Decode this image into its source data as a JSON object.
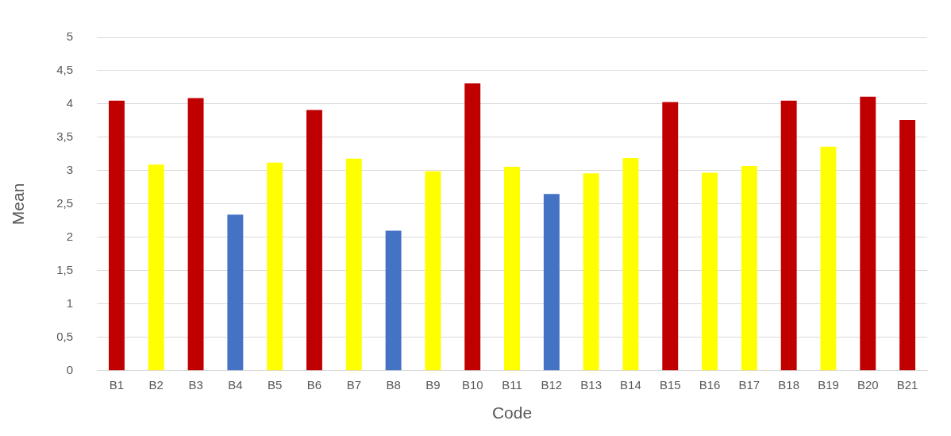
{
  "chart_data": {
    "type": "bar",
    "xlabel": "Code",
    "ylabel": "Mean",
    "categories": [
      "B1",
      "B2",
      "B3",
      "B4",
      "B5",
      "B6",
      "B7",
      "B8",
      "B9",
      "B10",
      "B11",
      "B12",
      "B13",
      "B14",
      "B15",
      "B16",
      "B17",
      "B18",
      "B19",
      "B20",
      "B21"
    ],
    "values": [
      4.05,
      3.09,
      4.09,
      2.34,
      3.12,
      3.91,
      3.18,
      2.1,
      2.99,
      4.31,
      3.06,
      2.65,
      2.96,
      3.19,
      4.03,
      2.97,
      3.07,
      4.05,
      3.36,
      4.11,
      3.76
    ],
    "colors": [
      "#c00000",
      "#ffff00",
      "#c00000",
      "#4472c4",
      "#ffff00",
      "#c00000",
      "#ffff00",
      "#4472c4",
      "#ffff00",
      "#c00000",
      "#ffff00",
      "#4472c4",
      "#ffff00",
      "#ffff00",
      "#c00000",
      "#ffff00",
      "#ffff00",
      "#c00000",
      "#ffff00",
      "#c00000",
      "#c00000"
    ],
    "ylim": [
      0,
      5
    ],
    "yticks": [
      0,
      {
        "value": 0.5,
        "label": "0,5"
      },
      1,
      {
        "value": 1.5,
        "label": "1,5"
      },
      2,
      {
        "value": 2.5,
        "label": "2,5"
      },
      3,
      {
        "value": 3.5,
        "label": "3,5"
      },
      4,
      {
        "value": 4.5,
        "label": "4,5"
      },
      5
    ],
    "grid": "y",
    "legend": false
  }
}
